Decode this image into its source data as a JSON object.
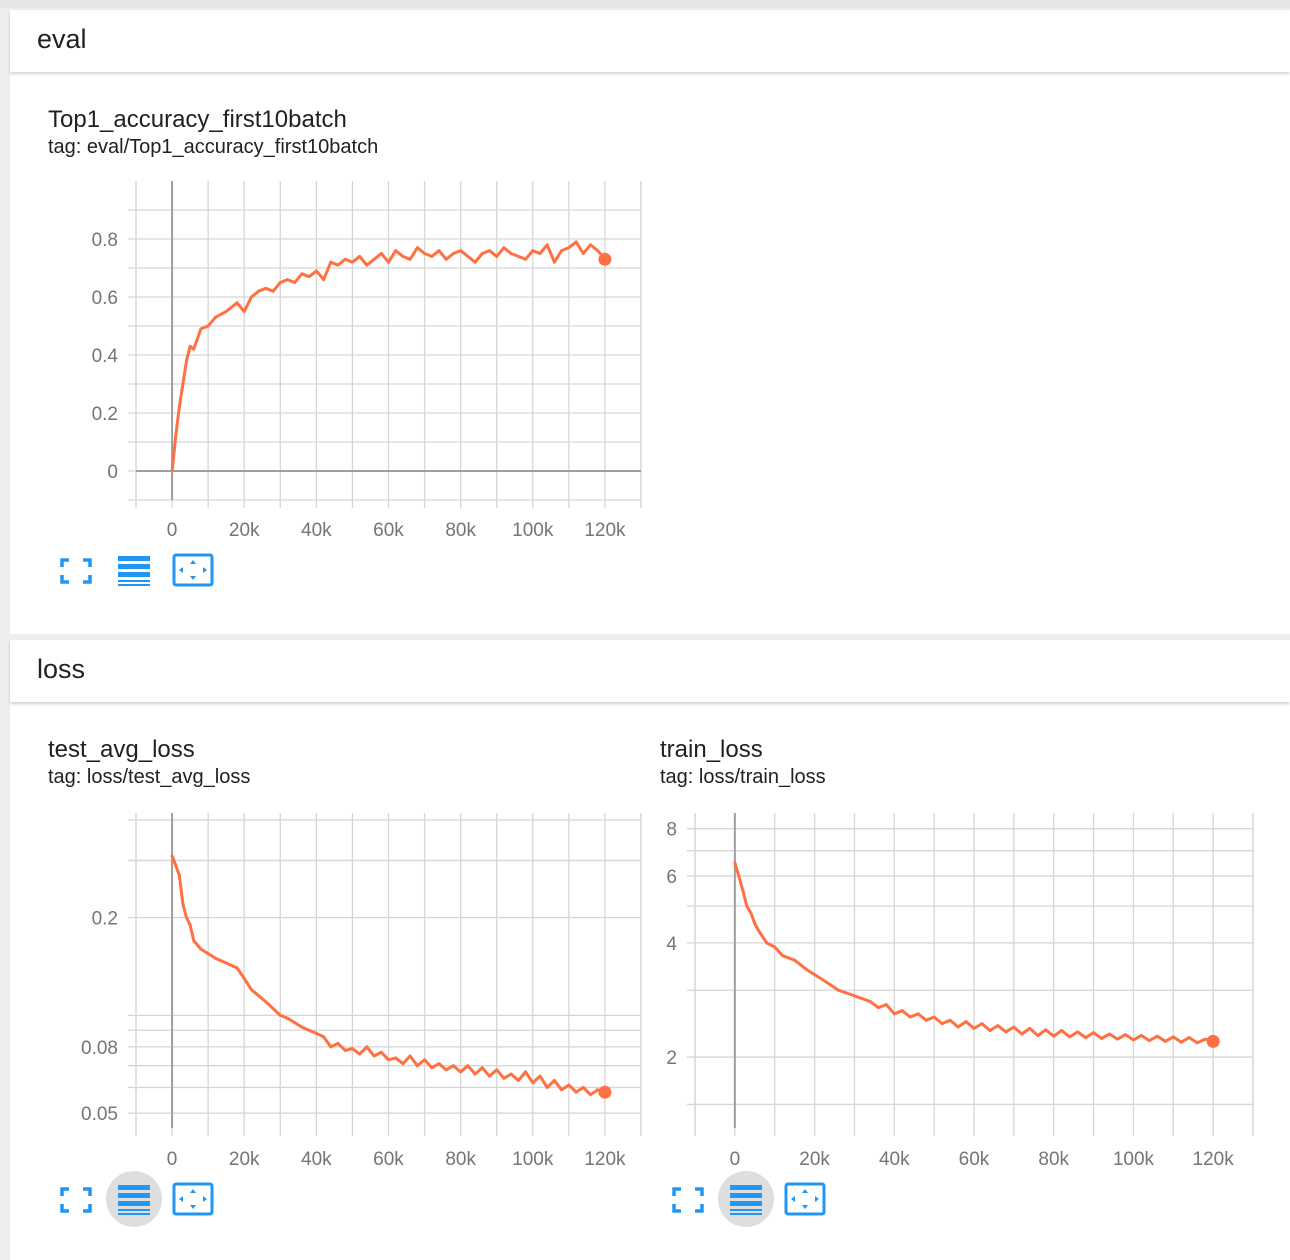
{
  "sections": {
    "eval": {
      "title": "eval",
      "cards": [
        {
          "title": "Top1_accuracy_first10batch",
          "tag": "tag: eval/Top1_accuracy_first10batch"
        }
      ]
    },
    "loss": {
      "title": "loss",
      "cards": [
        {
          "title": "test_avg_loss",
          "tag": "tag: loss/test_avg_loss"
        },
        {
          "title": "train_loss",
          "tag": "tag: loss/train_loss"
        }
      ]
    }
  },
  "colors": {
    "line": "#ff7043",
    "grid": "#d6d6d6",
    "axis": "#9e9e9e",
    "icon": "#2196f3",
    "tick_text": "#757575"
  },
  "controls": [
    {
      "icon": "fullscreen-icon"
    },
    {
      "icon": "list-icon"
    },
    {
      "icon": "fit-domain-icon"
    }
  ],
  "chart_data": [
    {
      "type": "line",
      "title": "Top1_accuracy_first10batch",
      "x_ticks": [
        "0",
        "20k",
        "40k",
        "60k",
        "80k",
        "100k",
        "120k"
      ],
      "y_ticks": [
        "0",
        "0.2",
        "0.4",
        "0.6",
        "0.8"
      ],
      "xlim": [
        -10000,
        130000
      ],
      "ylim": [
        -0.1,
        1.0
      ],
      "yscale": "linear",
      "grid": true,
      "x": [
        0,
        1000,
        2000,
        3000,
        4000,
        5000,
        6000,
        8000,
        10000,
        12000,
        15000,
        18000,
        20000,
        22000,
        24000,
        26000,
        28000,
        30000,
        32000,
        34000,
        36000,
        38000,
        40000,
        42000,
        44000,
        46000,
        48000,
        50000,
        52000,
        54000,
        56000,
        58000,
        60000,
        62000,
        64000,
        66000,
        68000,
        70000,
        72000,
        74000,
        76000,
        78000,
        80000,
        82000,
        84000,
        86000,
        88000,
        90000,
        92000,
        94000,
        96000,
        98000,
        100000,
        102000,
        104000,
        106000,
        108000,
        110000,
        112000,
        114000,
        116000,
        118000,
        120000
      ],
      "values": [
        0.0,
        0.12,
        0.22,
        0.3,
        0.38,
        0.43,
        0.42,
        0.49,
        0.5,
        0.53,
        0.55,
        0.58,
        0.55,
        0.6,
        0.62,
        0.63,
        0.62,
        0.65,
        0.66,
        0.65,
        0.68,
        0.67,
        0.69,
        0.66,
        0.72,
        0.71,
        0.73,
        0.72,
        0.74,
        0.71,
        0.73,
        0.75,
        0.72,
        0.76,
        0.74,
        0.73,
        0.77,
        0.75,
        0.74,
        0.76,
        0.73,
        0.75,
        0.76,
        0.74,
        0.72,
        0.75,
        0.76,
        0.74,
        0.77,
        0.75,
        0.74,
        0.73,
        0.76,
        0.75,
        0.78,
        0.72,
        0.76,
        0.77,
        0.79,
        0.75,
        0.78,
        0.76,
        0.73
      ]
    },
    {
      "type": "line",
      "title": "test_avg_loss",
      "x_ticks": [
        "0",
        "20k",
        "40k",
        "60k",
        "80k",
        "100k",
        "120k"
      ],
      "y_ticks": [
        "0.05",
        "0.08",
        "0.2"
      ],
      "xlim": [
        -10000,
        130000
      ],
      "ylim": [
        0.045,
        0.42
      ],
      "yscale": "log",
      "grid": true,
      "x": [
        0,
        1000,
        2000,
        3000,
        4000,
        5000,
        6000,
        8000,
        10000,
        12000,
        15000,
        18000,
        20000,
        22000,
        24000,
        26000,
        28000,
        30000,
        32000,
        34000,
        36000,
        38000,
        40000,
        42000,
        44000,
        46000,
        48000,
        50000,
        52000,
        54000,
        56000,
        58000,
        60000,
        62000,
        64000,
        66000,
        68000,
        70000,
        72000,
        74000,
        76000,
        78000,
        80000,
        82000,
        84000,
        86000,
        88000,
        90000,
        92000,
        94000,
        96000,
        98000,
        100000,
        102000,
        104000,
        106000,
        108000,
        110000,
        112000,
        114000,
        116000,
        118000,
        120000
      ],
      "values": [
        0.31,
        0.29,
        0.27,
        0.22,
        0.2,
        0.19,
        0.17,
        0.16,
        0.155,
        0.15,
        0.145,
        0.14,
        0.13,
        0.12,
        0.115,
        0.11,
        0.105,
        0.1,
        0.098,
        0.095,
        0.092,
        0.09,
        0.088,
        0.086,
        0.08,
        0.082,
        0.078,
        0.079,
        0.076,
        0.08,
        0.075,
        0.077,
        0.073,
        0.074,
        0.071,
        0.075,
        0.07,
        0.073,
        0.069,
        0.071,
        0.068,
        0.07,
        0.067,
        0.07,
        0.066,
        0.069,
        0.065,
        0.068,
        0.064,
        0.066,
        0.063,
        0.067,
        0.062,
        0.065,
        0.06,
        0.063,
        0.059,
        0.061,
        0.058,
        0.06,
        0.057,
        0.059,
        0.058
      ]
    },
    {
      "type": "line",
      "title": "train_loss",
      "x_ticks": [
        "0",
        "20k",
        "40k",
        "60k",
        "80k",
        "100k",
        "120k"
      ],
      "y_ticks": [
        "2",
        "4",
        "6",
        "8"
      ],
      "xlim": [
        -10000,
        130000
      ],
      "ylim": [
        1.3,
        8.8
      ],
      "yscale": "log",
      "grid": true,
      "x": [
        0,
        1000,
        2000,
        3000,
        4000,
        5000,
        6000,
        8000,
        10000,
        12000,
        15000,
        18000,
        20000,
        22000,
        24000,
        26000,
        28000,
        30000,
        32000,
        34000,
        36000,
        38000,
        40000,
        42000,
        44000,
        46000,
        48000,
        50000,
        52000,
        54000,
        56000,
        58000,
        60000,
        62000,
        64000,
        66000,
        68000,
        70000,
        72000,
        74000,
        76000,
        78000,
        80000,
        82000,
        84000,
        86000,
        88000,
        90000,
        92000,
        94000,
        96000,
        98000,
        100000,
        102000,
        104000,
        106000,
        108000,
        110000,
        112000,
        114000,
        116000,
        118000,
        120000
      ],
      "values": [
        6.5,
        6.0,
        5.5,
        5.0,
        4.8,
        4.5,
        4.3,
        4.0,
        3.9,
        3.7,
        3.6,
        3.4,
        3.3,
        3.2,
        3.1,
        3.0,
        2.95,
        2.9,
        2.85,
        2.8,
        2.7,
        2.75,
        2.6,
        2.65,
        2.55,
        2.6,
        2.5,
        2.55,
        2.45,
        2.5,
        2.4,
        2.48,
        2.38,
        2.45,
        2.35,
        2.42,
        2.33,
        2.4,
        2.3,
        2.38,
        2.28,
        2.36,
        2.27,
        2.35,
        2.26,
        2.33,
        2.25,
        2.32,
        2.24,
        2.3,
        2.23,
        2.29,
        2.22,
        2.28,
        2.21,
        2.27,
        2.2,
        2.26,
        2.19,
        2.25,
        2.18,
        2.23,
        2.2
      ]
    }
  ]
}
